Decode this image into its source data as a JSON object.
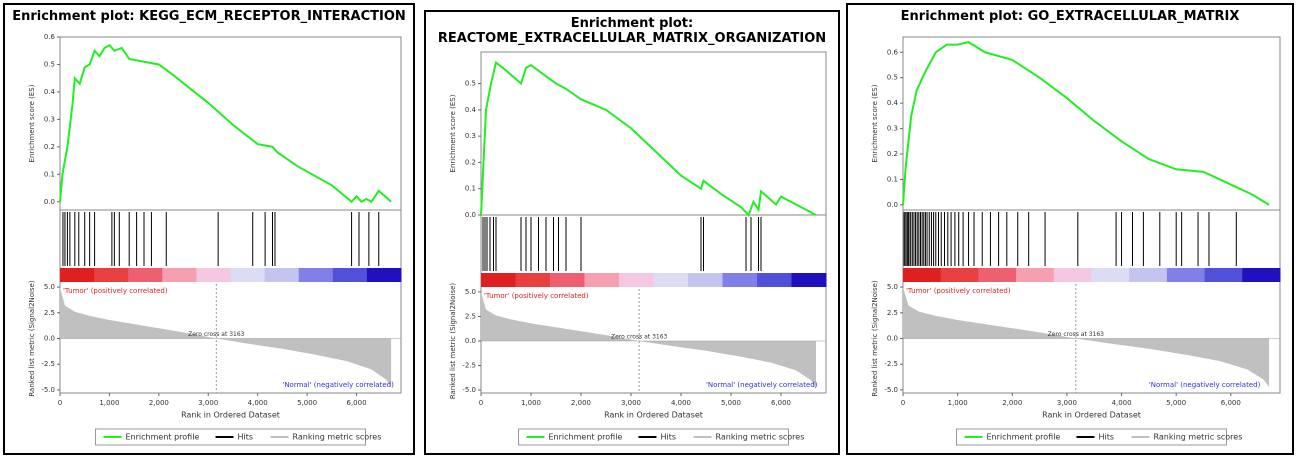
{
  "chart_data": [
    {
      "type": "line",
      "title": "Enrichment plot: KEGG_ECM_RECEPTOR_INTERACTION",
      "y_label": "Enrichment score (ES)",
      "y2_label": "Ranked list metric (Signal2Noise)",
      "x_label": "Rank in Ordered Dataset",
      "xlim": [
        0,
        6900
      ],
      "xticks": [
        0,
        {
          "value": 1000,
          "label": "1,000"
        },
        {
          "value": 2000,
          "label": "2,000"
        },
        {
          "value": 3000,
          "label": "3,000"
        },
        {
          "value": 4000,
          "label": "4,000"
        },
        {
          "value": 5000,
          "label": "5,000"
        },
        {
          "value": 6000,
          "label": "6,000"
        }
      ],
      "ylim": [
        -0.03,
        0.6
      ],
      "yticks": [
        {
          "value": 0,
          "label": "0.0"
        },
        0.1,
        0.2,
        0.3,
        0.4,
        0.5,
        0.6
      ],
      "y2lim": [
        -5.3,
        5.3
      ],
      "y2ticks": [
        {
          "value": 5,
          "label": "5.0"
        },
        2.5,
        {
          "value": 0,
          "label": "0.0"
        },
        -2.5,
        {
          "value": -5,
          "label": "-5.0"
        }
      ],
      "series": [
        {
          "name": "Enrichment profile",
          "color": "#22ee22",
          "x": [
            0,
            50,
            150,
            250,
            300,
            400,
            500,
            600,
            700,
            800,
            900,
            1000,
            1100,
            1250,
            1400,
            1700,
            2000,
            2300,
            3000,
            3500,
            4000,
            4300,
            4400,
            4800,
            5500,
            5900,
            6000,
            6100,
            6200,
            6300,
            6450,
            6700
          ],
          "values": [
            0,
            0.1,
            0.2,
            0.35,
            0.45,
            0.43,
            0.49,
            0.5,
            0.55,
            0.53,
            0.56,
            0.57,
            0.55,
            0.56,
            0.52,
            0.51,
            0.5,
            0.46,
            0.36,
            0.28,
            0.21,
            0.2,
            0.18,
            0.13,
            0.06,
            0,
            0.02,
            0,
            0.01,
            0,
            0.04,
            0
          ]
        },
        {
          "name": "Hits",
          "color": "#000000",
          "x": [
            60,
            100,
            150,
            200,
            300,
            380,
            500,
            600,
            700,
            1050,
            1100,
            1200,
            1400,
            1550,
            1700,
            1850,
            2150,
            3200,
            3900,
            4150,
            4300,
            4350,
            5900,
            6050,
            6250,
            6450
          ]
        },
        {
          "name": "Ranking metric scores",
          "color": "#c0c0c0",
          "axis": "y2",
          "x": [
            0,
            100,
            300,
            600,
            1000,
            1500,
            2000,
            2500,
            3163,
            3800,
            4500,
            5200,
            5800,
            6300,
            6600,
            6700
          ],
          "values": [
            5,
            3.2,
            2.6,
            2.2,
            1.8,
            1.4,
            1,
            0.6,
            0,
            -0.5,
            -1,
            -1.6,
            -2.2,
            -3,
            -4,
            -4.7
          ]
        }
      ],
      "annotations": [
        "'Tumor' (positively correlated)",
        "'Normal' (negatively correlated)"
      ],
      "zero_cross": {
        "value": 3163,
        "label": "Zero cross at 3163"
      }
    },
    {
      "type": "line",
      "title": "Enrichment plot: REACTOME_EXTRACELLULAR_MATRIX_ORGANIZATION",
      "y_label": "Enrichment score (ES)",
      "y2_label": "Ranked list metric (Signal2Noise)",
      "x_label": "Rank in Ordered Dataset",
      "xlim": [
        0,
        6900
      ],
      "xticks": [
        0,
        {
          "value": 1000,
          "label": "1,000"
        },
        {
          "value": 2000,
          "label": "2,000"
        },
        {
          "value": 3000,
          "label": "3,000"
        },
        {
          "value": 4000,
          "label": "4,000"
        },
        {
          "value": 5000,
          "label": "5,000"
        },
        {
          "value": 6000,
          "label": "6,000"
        }
      ],
      "ylim": [
        0,
        0.62
      ],
      "yticks": [
        {
          "value": 0,
          "label": "0.0"
        },
        0.1,
        0.2,
        0.3,
        0.4,
        0.5
      ],
      "y2lim": [
        -5.3,
        5.3
      ],
      "y2ticks": [
        {
          "value": 5,
          "label": "5.0"
        },
        2.5,
        {
          "value": 0,
          "label": "0.0"
        },
        -2.5,
        {
          "value": -5,
          "label": "-5.0"
        }
      ],
      "series": [
        {
          "name": "Enrichment profile",
          "color": "#22ee22",
          "x": [
            0,
            50,
            100,
            200,
            300,
            500,
            800,
            900,
            1000,
            1500,
            1700,
            2000,
            2500,
            3000,
            3500,
            4000,
            4400,
            4450,
            4800,
            5200,
            5350,
            5450,
            5550,
            5600,
            5900,
            6000,
            6700
          ],
          "values": [
            0,
            0.2,
            0.4,
            0.5,
            0.58,
            0.55,
            0.5,
            0.56,
            0.57,
            0.5,
            0.48,
            0.44,
            0.4,
            0.33,
            0.24,
            0.15,
            0.1,
            0.13,
            0.08,
            0.03,
            0,
            0.05,
            0.02,
            0.09,
            0.04,
            0.07,
            0
          ]
        },
        {
          "name": "Hits",
          "color": "#000000",
          "x": [
            40,
            80,
            120,
            180,
            250,
            300,
            800,
            900,
            1000,
            1150,
            1300,
            1450,
            1550,
            1700,
            2000,
            4400,
            4450,
            5300,
            5400,
            5550,
            5600
          ]
        },
        {
          "name": "Ranking metric scores",
          "color": "#c0c0c0",
          "axis": "y2",
          "x": [
            0,
            100,
            300,
            600,
            1000,
            1500,
            2000,
            2500,
            3163,
            3800,
            4500,
            5200,
            5800,
            6300,
            6600,
            6700
          ],
          "values": [
            5,
            3.2,
            2.6,
            2.2,
            1.8,
            1.4,
            1,
            0.6,
            0,
            -0.5,
            -1,
            -1.6,
            -2.2,
            -3,
            -4,
            -4.9
          ]
        }
      ],
      "annotations": [
        "'Tumor' (positively correlated)",
        "'Normal' (negatively correlated)"
      ],
      "zero_cross": {
        "value": 3163,
        "label": "Zero cross at 3163"
      }
    },
    {
      "type": "line",
      "title": "Enrichment plot: GO_EXTRACELLULAR_MATRIX",
      "y_label": "Enrichment score (ES)",
      "y2_label": "Ranked list metric (Signal2Noise)",
      "x_label": "Rank in Ordered Dataset",
      "xlim": [
        0,
        6900
      ],
      "xticks": [
        0,
        {
          "value": 1000,
          "label": "1,000"
        },
        {
          "value": 2000,
          "label": "2,000"
        },
        {
          "value": 3000,
          "label": "3,000"
        },
        {
          "value": 4000,
          "label": "4,000"
        },
        {
          "value": 5000,
          "label": "5,000"
        },
        {
          "value": 6000,
          "label": "6,000"
        }
      ],
      "ylim": [
        -0.02,
        0.66
      ],
      "yticks": [
        {
          "value": 0,
          "label": "0.0"
        },
        0.1,
        0.2,
        0.3,
        0.4,
        0.5,
        0.6
      ],
      "y2lim": [
        -5.3,
        5.3
      ],
      "y2ticks": [
        {
          "value": 5,
          "label": "5.0"
        },
        2.5,
        {
          "value": 0,
          "label": "0.0"
        },
        -2.5,
        {
          "value": -5,
          "label": "-5.0"
        }
      ],
      "series": [
        {
          "name": "Enrichment profile",
          "color": "#22ee22",
          "x": [
            0,
            50,
            150,
            250,
            400,
            600,
            800,
            1000,
            1200,
            1500,
            2000,
            2500,
            3000,
            3500,
            4000,
            4500,
            5000,
            5500,
            6000,
            6400,
            6700
          ],
          "values": [
            0,
            0.15,
            0.35,
            0.45,
            0.52,
            0.6,
            0.63,
            0.63,
            0.64,
            0.6,
            0.57,
            0.5,
            0.42,
            0.33,
            0.25,
            0.18,
            0.14,
            0.13,
            0.08,
            0.04,
            0
          ]
        },
        {
          "name": "Hits",
          "color": "#000000",
          "x": [
            20,
            40,
            70,
            90,
            110,
            140,
            170,
            200,
            230,
            260,
            290,
            320,
            350,
            380,
            410,
            440,
            480,
            520,
            560,
            600,
            650,
            700,
            760,
            820,
            880,
            950,
            1020,
            1100,
            1200,
            1300,
            1450,
            1600,
            1750,
            1900,
            2100,
            2300,
            2600,
            3200,
            3900,
            4000,
            4200,
            4400,
            4700,
            5000,
            5100,
            5400,
            5600,
            6100
          ]
        },
        {
          "name": "Ranking metric scores",
          "color": "#c0c0c0",
          "axis": "y2",
          "x": [
            0,
            100,
            300,
            600,
            1000,
            1500,
            2000,
            2500,
            3163,
            3800,
            4500,
            5200,
            5800,
            6300,
            6600,
            6700
          ],
          "values": [
            5,
            3.2,
            2.6,
            2.2,
            1.8,
            1.4,
            1,
            0.6,
            0,
            -0.5,
            -1,
            -1.6,
            -2.2,
            -3,
            -4,
            -4.7
          ]
        }
      ],
      "annotations": [
        "'Tumor' (positively correlated)",
        "'Normal' (negatively correlated)"
      ],
      "zero_cross": {
        "value": 3163,
        "label": "Zero cross at 3163"
      }
    }
  ]
}
